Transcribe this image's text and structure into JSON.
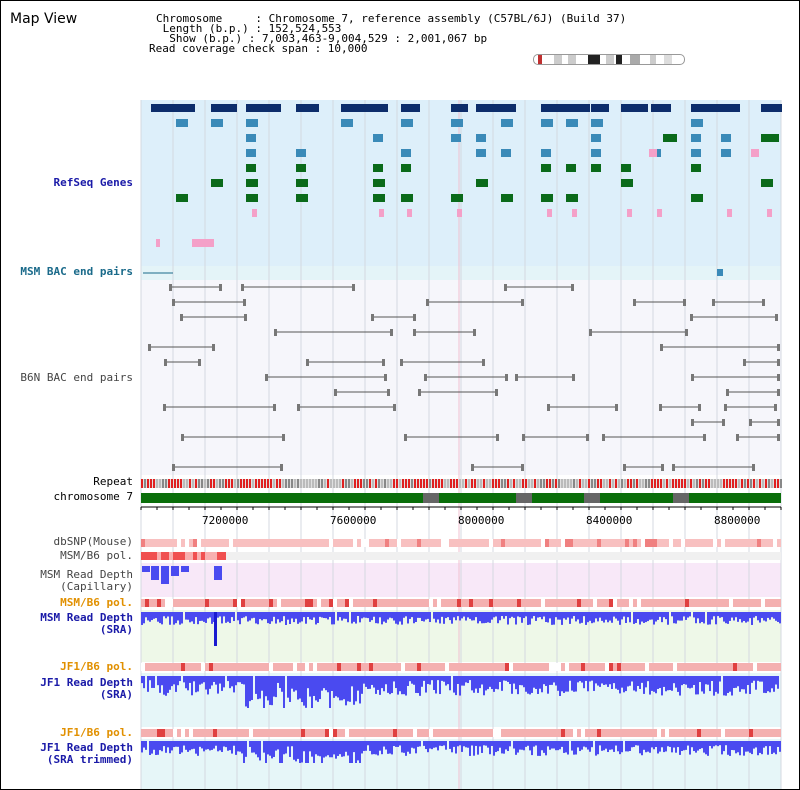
{
  "view_title": "Map View",
  "info": {
    "chromosome": "Chromosome     : Chromosome 7, reference assembly (C57BL/6J) (Build 37)",
    "length": " Length (b.p.) : 152,524,553",
    "show": "  Show (b.p.) : 7,003,463-9,004,529 : 2,001,067 bp",
    "coverage": "Read coverage check span : 10,000"
  },
  "tracks": {
    "refseq": "RefSeq Genes",
    "msm_bac": "MSM BAC end pairs",
    "b6n_bac": "B6N BAC end pairs",
    "repeat": "Repeat",
    "chromosome": "chromosome 7",
    "dbsnp": "dbSNP(Mouse)",
    "msm_b6_pol_a": "MSM/B6 pol.",
    "msm_read_depth_cap_1": "MSM Read Depth",
    "msm_read_depth_cap_2": "(Capillary)",
    "msm_b6_pol_b": "MSM/B6 pol.",
    "msm_read_depth_sra_1": "MSM Read Depth",
    "msm_read_depth_sra_2": "(SRA)",
    "jf1_b6_pol_a": "JF1/B6 pol.",
    "jf1_read_depth_1": "JF1 Read Depth",
    "jf1_read_depth_2": "(SRA)",
    "jf1_b6_pol_b": "JF1/B6 pol.",
    "jf1_read_depth_trim_1": "JF1 Read Depth",
    "jf1_read_depth_trim_2": "(SRA trimmed)"
  },
  "axis_ticks": [
    "7200000",
    "7600000",
    "8000000",
    "8400000",
    "8800000"
  ],
  "colors": {
    "gene_dark": "#0d2d6b",
    "gene_mid": "#3a8ab8",
    "gene_green": "#0a6a1a",
    "gene_pink": "#f4a0c8",
    "chrom_green": "#0a6e0a",
    "depth_blue": "#4a4af0"
  }
}
